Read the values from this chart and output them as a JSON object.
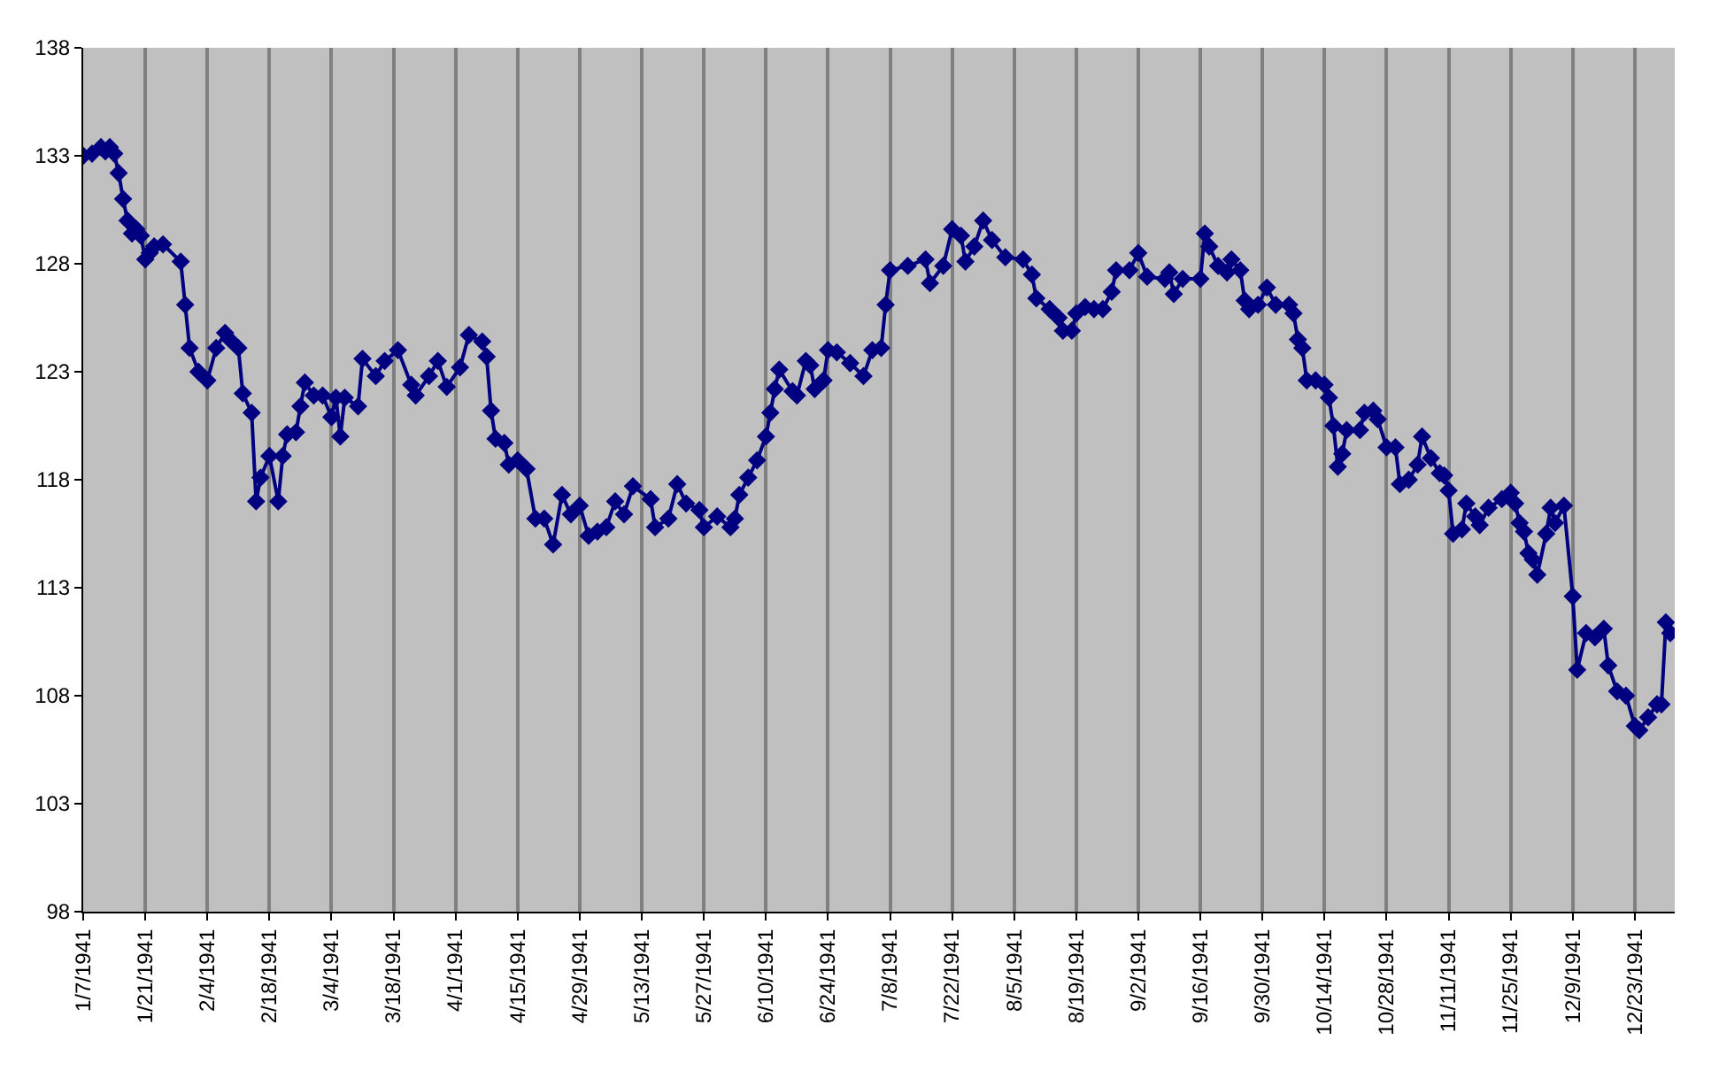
{
  "chart_data": {
    "type": "line",
    "marker": "diamond",
    "grid": "x",
    "line_style": "solid",
    "xlim": [
      "1941-01-07",
      "1942-01-01"
    ],
    "xticks": [
      {
        "value": "1941-01-07",
        "label": "1/7/1941"
      },
      {
        "value": "1941-01-21",
        "label": "1/21/1941"
      },
      {
        "value": "1941-02-04",
        "label": "2/4/1941"
      },
      {
        "value": "1941-02-18",
        "label": "2/18/1941"
      },
      {
        "value": "1941-03-04",
        "label": "3/4/1941"
      },
      {
        "value": "1941-03-18",
        "label": "3/18/1941"
      },
      {
        "value": "1941-04-01",
        "label": "4/1/1941"
      },
      {
        "value": "1941-04-15",
        "label": "4/15/1941"
      },
      {
        "value": "1941-04-29",
        "label": "4/29/1941"
      },
      {
        "value": "1941-05-13",
        "label": "5/13/1941"
      },
      {
        "value": "1941-05-27",
        "label": "5/27/1941"
      },
      {
        "value": "1941-06-10",
        "label": "6/10/1941"
      },
      {
        "value": "1941-06-24",
        "label": "6/24/1941"
      },
      {
        "value": "1941-07-08",
        "label": "7/8/1941"
      },
      {
        "value": "1941-07-22",
        "label": "7/22/1941"
      },
      {
        "value": "1941-08-05",
        "label": "8/5/1941"
      },
      {
        "value": "1941-08-19",
        "label": "8/19/1941"
      },
      {
        "value": "1941-09-02",
        "label": "9/2/1941"
      },
      {
        "value": "1941-09-16",
        "label": "9/16/1941"
      },
      {
        "value": "1941-09-30",
        "label": "9/30/1941"
      },
      {
        "value": "1941-10-14",
        "label": "10/14/1941"
      },
      {
        "value": "1941-10-28",
        "label": "10/28/1941"
      },
      {
        "value": "1941-11-11",
        "label": "11/11/1941"
      },
      {
        "value": "1941-11-25",
        "label": "11/25/1941"
      },
      {
        "value": "1941-12-09",
        "label": "12/9/1941"
      },
      {
        "value": "1941-12-23",
        "label": "12/23/1941"
      }
    ],
    "ylim": [
      98,
      138
    ],
    "yticks": [
      98,
      103,
      108,
      113,
      118,
      123,
      128,
      133,
      138
    ],
    "series": [
      {
        "color": "#000080",
        "x": [
          "1941-01-07",
          "1941-01-09",
          "1941-01-11",
          "1941-01-12",
          "1941-01-13",
          "1941-01-14",
          "1941-01-15",
          "1941-01-16",
          "1941-01-17",
          "1941-01-18",
          "1941-01-19",
          "1941-01-20",
          "1941-01-21",
          "1941-01-22",
          "1941-01-23",
          "1941-01-25",
          "1941-01-29",
          "1941-01-30",
          "1941-01-31",
          "1941-02-02",
          "1941-02-04",
          "1941-02-06",
          "1941-02-08",
          "1941-02-09",
          "1941-02-11",
          "1941-02-12",
          "1941-02-14",
          "1941-02-15",
          "1941-02-16",
          "1941-02-18",
          "1941-02-20",
          "1941-02-21",
          "1941-02-22",
          "1941-02-24",
          "1941-02-25",
          "1941-02-26",
          "1941-02-28",
          "1941-03-02",
          "1941-03-04",
          "1941-03-05",
          "1941-03-06",
          "1941-03-07",
          "1941-03-10",
          "1941-03-11",
          "1941-03-14",
          "1941-03-16",
          "1941-03-19",
          "1941-03-22",
          "1941-03-23",
          "1941-03-26",
          "1941-03-28",
          "1941-03-30",
          "1941-04-02",
          "1941-04-04",
          "1941-04-07",
          "1941-04-08",
          "1941-04-09",
          "1941-04-10",
          "1941-04-12",
          "1941-04-13",
          "1941-04-15",
          "1941-04-17",
          "1941-04-19",
          "1941-04-21",
          "1941-04-23",
          "1941-04-25",
          "1941-04-27",
          "1941-04-29",
          "1941-05-01",
          "1941-05-03",
          "1941-05-05",
          "1941-05-07",
          "1941-05-09",
          "1941-05-11",
          "1941-05-15",
          "1941-05-16",
          "1941-05-19",
          "1941-05-21",
          "1941-05-23",
          "1941-05-26",
          "1941-05-27",
          "1941-05-30",
          "1941-06-02",
          "1941-06-03",
          "1941-06-04",
          "1941-06-06",
          "1941-06-08",
          "1941-06-10",
          "1941-06-11",
          "1941-06-12",
          "1941-06-13",
          "1941-06-16",
          "1941-06-17",
          "1941-06-19",
          "1941-06-20",
          "1941-06-21",
          "1941-06-23",
          "1941-06-24",
          "1941-06-26",
          "1941-06-29",
          "1941-07-02",
          "1941-07-04",
          "1941-07-06",
          "1941-07-07",
          "1941-07-08",
          "1941-07-12",
          "1941-07-16",
          "1941-07-17",
          "1941-07-20",
          "1941-07-22",
          "1941-07-24",
          "1941-07-25",
          "1941-07-27",
          "1941-07-29",
          "1941-07-31",
          "1941-08-03",
          "1941-08-07",
          "1941-08-09",
          "1941-08-10",
          "1941-08-13",
          "1941-08-15",
          "1941-08-16",
          "1941-08-18",
          "1941-08-19",
          "1941-08-21",
          "1941-08-23",
          "1941-08-25",
          "1941-08-27",
          "1941-08-28",
          "1941-08-31",
          "1941-09-02",
          "1941-09-04",
          "1941-09-08",
          "1941-09-09",
          "1941-09-10",
          "1941-09-12",
          "1941-09-16",
          "1941-09-17",
          "1941-09-18",
          "1941-09-20",
          "1941-09-22",
          "1941-09-23",
          "1941-09-25",
          "1941-09-26",
          "1941-09-27",
          "1941-09-29",
          "1941-10-01",
          "1941-10-03",
          "1941-10-06",
          "1941-10-07",
          "1941-10-08",
          "1941-10-09",
          "1941-10-10",
          "1941-10-12",
          "1941-10-14",
          "1941-10-15",
          "1941-10-16",
          "1941-10-17",
          "1941-10-18",
          "1941-10-19",
          "1941-10-22",
          "1941-10-23",
          "1941-10-25",
          "1941-10-26",
          "1941-10-28",
          "1941-10-30",
          "1941-10-31",
          "1941-11-02",
          "1941-11-04",
          "1941-11-05",
          "1941-11-07",
          "1941-11-09",
          "1941-11-10",
          "1941-11-11",
          "1941-11-12",
          "1941-11-14",
          "1941-11-15",
          "1941-11-17",
          "1941-11-18",
          "1941-11-20",
          "1941-11-23",
          "1941-11-25",
          "1941-11-26",
          "1941-11-27",
          "1941-11-28",
          "1941-11-29",
          "1941-11-30",
          "1941-12-01",
          "1941-12-03",
          "1941-12-04",
          "1941-12-05",
          "1941-12-07",
          "1941-12-09",
          "1941-12-10",
          "1941-12-12",
          "1941-12-14",
          "1941-12-16",
          "1941-12-17",
          "1941-12-19",
          "1941-12-21",
          "1941-12-23",
          "1941-12-24",
          "1941-12-26",
          "1941-12-28",
          "1941-12-29",
          "1941-12-30",
          "1941-12-31"
        ],
        "values": [
          133.0,
          133.1,
          133.4,
          133.2,
          133.4,
          133.1,
          132.2,
          131.0,
          130.0,
          129.4,
          129.6,
          129.3,
          128.2,
          128.5,
          128.8,
          128.9,
          128.1,
          126.1,
          124.1,
          123.0,
          122.6,
          124.1,
          124.8,
          124.5,
          124.1,
          122.0,
          121.1,
          117.0,
          118.1,
          119.1,
          117.0,
          119.1,
          120.1,
          120.2,
          121.4,
          122.5,
          121.9,
          121.9,
          120.9,
          121.8,
          120.0,
          121.8,
          121.4,
          123.6,
          122.8,
          123.5,
          124.0,
          122.4,
          121.9,
          122.8,
          123.5,
          122.3,
          123.2,
          124.7,
          124.4,
          123.7,
          121.2,
          119.9,
          119.7,
          118.7,
          118.9,
          118.5,
          116.2,
          116.2,
          115.0,
          117.3,
          116.4,
          116.8,
          115.4,
          115.6,
          115.8,
          117.0,
          116.4,
          117.7,
          117.1,
          115.8,
          116.2,
          117.8,
          116.9,
          116.6,
          115.8,
          116.3,
          115.8,
          116.2,
          117.3,
          118.1,
          118.9,
          120.0,
          121.1,
          122.2,
          123.1,
          122.1,
          121.9,
          123.5,
          123.3,
          122.2,
          122.6,
          124.0,
          123.9,
          123.4,
          122.8,
          124.0,
          124.1,
          126.1,
          127.7,
          127.9,
          128.2,
          127.1,
          127.9,
          129.6,
          129.3,
          128.1,
          128.8,
          130.0,
          129.1,
          128.3,
          128.2,
          127.5,
          126.4,
          125.9,
          125.5,
          124.9,
          124.9,
          125.7,
          126.0,
          125.9,
          125.9,
          126.7,
          127.7,
          127.7,
          128.5,
          127.4,
          127.3,
          127.6,
          126.6,
          127.3,
          127.3,
          129.4,
          128.8,
          127.9,
          127.6,
          128.2,
          127.7,
          126.3,
          125.9,
          126.1,
          126.9,
          126.1,
          126.1,
          125.7,
          124.5,
          124.1,
          122.6,
          122.6,
          122.4,
          121.8,
          120.5,
          118.6,
          119.2,
          120.3,
          120.3,
          121.1,
          121.2,
          120.8,
          119.5,
          119.5,
          117.8,
          118.0,
          118.7,
          120.0,
          119.0,
          118.3,
          118.2,
          117.5,
          115.5,
          115.7,
          116.9,
          116.3,
          115.9,
          116.7,
          117.1,
          117.4,
          116.9,
          116.0,
          115.6,
          114.6,
          114.3,
          113.6,
          115.5,
          116.7,
          116.0,
          116.8,
          112.6,
          109.2,
          110.9,
          110.7,
          111.1,
          109.4,
          108.2,
          108.0,
          106.6,
          106.4,
          107.0,
          107.6,
          107.6,
          111.4,
          110.9
        ]
      }
    ]
  }
}
